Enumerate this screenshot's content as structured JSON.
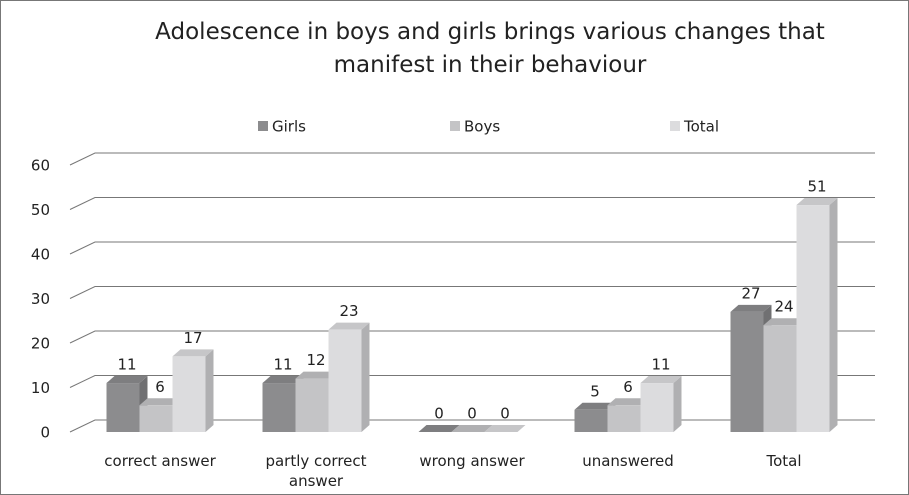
{
  "chart_data": {
    "type": "bar",
    "title": "Adolescence in boys and girls brings various changes that manifest in their behaviour",
    "categories": [
      "correct answer",
      "partly correct answer",
      "wrong answer",
      "unanswered",
      "Total"
    ],
    "series": [
      {
        "name": "Girls",
        "color": "#8c8c8e",
        "values": [
          11,
          11,
          0,
          5,
          27
        ]
      },
      {
        "name": "Boys",
        "color": "#c4c4c6",
        "values": [
          6,
          12,
          0,
          6,
          24
        ]
      },
      {
        "name": "Total",
        "color": "#dcdcde",
        "values": [
          17,
          23,
          0,
          11,
          51
        ]
      }
    ],
    "ylim": [
      0,
      60
    ],
    "yticks": [
      0,
      10,
      20,
      30,
      40,
      50,
      60
    ],
    "grid": true,
    "legend": "top"
  }
}
